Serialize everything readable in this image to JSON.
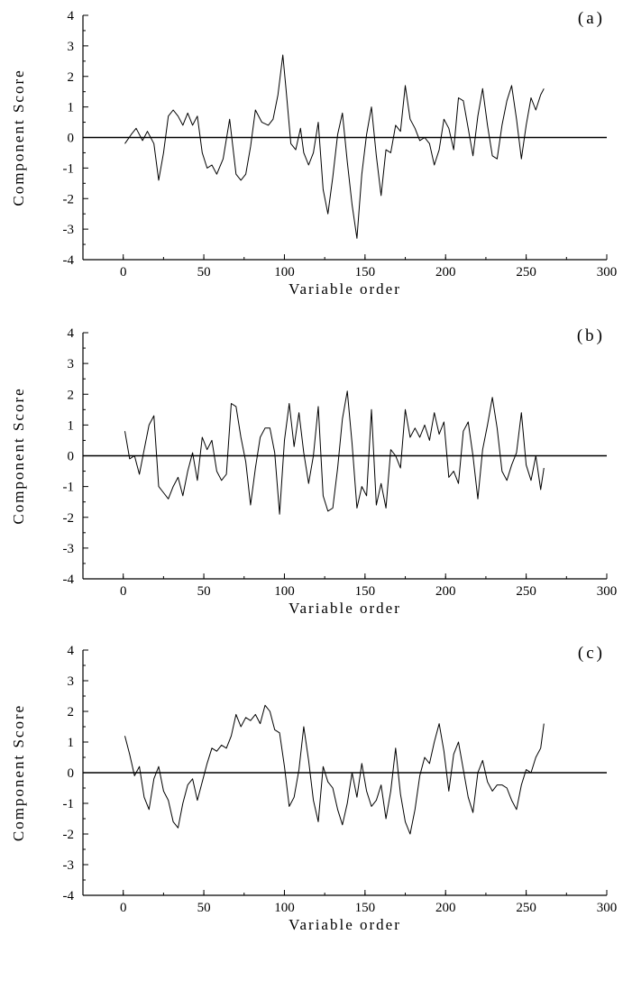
{
  "figure": {
    "panel_labels": [
      "(a)",
      "(b)",
      "(c)"
    ]
  },
  "chart_data": [
    {
      "type": "line",
      "panel_label": "(a)",
      "title": "",
      "xlabel": "Variable order",
      "ylabel": "Component Score",
      "xlim": [
        -25,
        300
      ],
      "ylim": [
        -4,
        4
      ],
      "xticks": [
        0,
        50,
        100,
        150,
        200,
        250,
        300
      ],
      "yticks": [
        -4,
        -3,
        -2,
        -1,
        0,
        1,
        2,
        3,
        4
      ],
      "baseline": 0,
      "grid": false,
      "x": [
        1,
        5,
        8,
        12,
        15,
        19,
        22,
        25,
        28,
        31,
        34,
        37,
        40,
        43,
        46,
        49,
        52,
        55,
        58,
        62,
        66,
        70,
        73,
        76,
        79,
        82,
        86,
        90,
        93,
        96,
        99,
        101,
        104,
        107,
        110,
        112,
        115,
        118,
        121,
        124,
        127,
        130,
        133,
        136,
        139,
        142,
        145,
        148,
        151,
        154,
        157,
        160,
        163,
        166,
        169,
        172,
        175,
        178,
        181,
        184,
        187,
        190,
        193,
        196,
        199,
        202,
        205,
        208,
        211,
        214,
        217,
        220,
        223,
        226,
        229,
        232,
        235,
        238,
        241,
        244,
        247,
        250,
        253,
        256,
        259,
        261
      ],
      "y": [
        -0.2,
        0.1,
        0.3,
        -0.1,
        0.2,
        -0.2,
        -1.4,
        -0.5,
        0.7,
        0.9,
        0.7,
        0.4,
        0.8,
        0.4,
        0.7,
        -0.5,
        -1.0,
        -0.9,
        -1.2,
        -0.7,
        0.6,
        -1.2,
        -1.4,
        -1.2,
        -0.3,
        0.9,
        0.5,
        0.4,
        0.6,
        1.4,
        2.7,
        1.6,
        -0.2,
        -0.4,
        0.3,
        -0.5,
        -0.9,
        -0.5,
        0.5,
        -1.7,
        -2.5,
        -1.3,
        0.1,
        0.8,
        -0.8,
        -2.2,
        -3.3,
        -1.2,
        0.1,
        1.0,
        -0.6,
        -1.9,
        -0.4,
        -0.5,
        0.4,
        0.2,
        1.7,
        0.6,
        0.3,
        -0.1,
        0.0,
        -0.2,
        -0.9,
        -0.4,
        0.6,
        0.3,
        -0.4,
        1.3,
        1.2,
        0.3,
        -0.6,
        0.7,
        1.6,
        0.4,
        -0.6,
        -0.7,
        0.4,
        1.2,
        1.7,
        0.6,
        -0.7,
        0.4,
        1.3,
        0.9,
        1.4,
        1.6
      ]
    },
    {
      "type": "line",
      "panel_label": "(b)",
      "title": "",
      "xlabel": "Variable order",
      "ylabel": "Component Score",
      "xlim": [
        -25,
        300
      ],
      "ylim": [
        -4,
        4
      ],
      "xticks": [
        0,
        50,
        100,
        150,
        200,
        250,
        300
      ],
      "yticks": [
        -4,
        -3,
        -2,
        -1,
        0,
        1,
        2,
        3,
        4
      ],
      "baseline": 0,
      "grid": false,
      "x": [
        1,
        4,
        7,
        10,
        13,
        16,
        19,
        22,
        25,
        28,
        31,
        34,
        37,
        40,
        43,
        46,
        49,
        52,
        55,
        58,
        61,
        64,
        67,
        70,
        73,
        76,
        79,
        82,
        85,
        88,
        91,
        94,
        97,
        100,
        103,
        106,
        109,
        112,
        115,
        118,
        121,
        124,
        127,
        130,
        133,
        136,
        139,
        142,
        145,
        148,
        151,
        154,
        157,
        160,
        163,
        166,
        169,
        172,
        175,
        178,
        181,
        184,
        187,
        190,
        193,
        196,
        199,
        202,
        205,
        208,
        211,
        214,
        217,
        220,
        223,
        226,
        229,
        232,
        235,
        238,
        241,
        244,
        247,
        250,
        253,
        256,
        259,
        261
      ],
      "y": [
        0.8,
        -0.1,
        0.0,
        -0.6,
        0.2,
        1.0,
        1.3,
        -1.0,
        -1.2,
        -1.4,
        -1.0,
        -0.7,
        -1.3,
        -0.5,
        0.1,
        -0.8,
        0.6,
        0.2,
        0.5,
        -0.5,
        -0.8,
        -0.6,
        1.7,
        1.6,
        0.6,
        -0.2,
        -1.6,
        -0.4,
        0.6,
        0.9,
        0.9,
        0.1,
        -1.9,
        0.5,
        1.7,
        0.3,
        1.4,
        0.1,
        -0.9,
        0.0,
        1.6,
        -1.3,
        -1.8,
        -1.7,
        -0.4,
        1.2,
        2.1,
        0.4,
        -1.7,
        -1.0,
        -1.3,
        1.5,
        -1.6,
        -0.9,
        -1.7,
        0.2,
        0.0,
        -0.4,
        1.5,
        0.6,
        0.9,
        0.6,
        1.0,
        0.5,
        1.4,
        0.7,
        1.1,
        -0.7,
        -0.5,
        -0.9,
        0.8,
        1.1,
        0.0,
        -1.4,
        0.2,
        1.0,
        1.9,
        0.9,
        -0.5,
        -0.8,
        -0.3,
        0.1,
        1.4,
        -0.3,
        -0.8,
        0.0,
        -1.1,
        -0.4
      ]
    },
    {
      "type": "line",
      "panel_label": "(c)",
      "title": "",
      "xlabel": "Variable order",
      "ylabel": "Component Score",
      "xlim": [
        -25,
        300
      ],
      "ylim": [
        -4,
        4
      ],
      "xticks": [
        0,
        50,
        100,
        150,
        200,
        250,
        300
      ],
      "yticks": [
        -4,
        -3,
        -2,
        -1,
        0,
        1,
        2,
        3,
        4
      ],
      "baseline": 0,
      "grid": false,
      "x": [
        1,
        4,
        7,
        10,
        13,
        16,
        19,
        22,
        25,
        28,
        31,
        34,
        37,
        40,
        43,
        46,
        49,
        52,
        55,
        58,
        61,
        64,
        67,
        70,
        73,
        76,
        79,
        82,
        85,
        88,
        91,
        94,
        97,
        100,
        103,
        106,
        109,
        112,
        115,
        118,
        121,
        124,
        127,
        130,
        133,
        136,
        139,
        142,
        145,
        148,
        151,
        154,
        157,
        160,
        163,
        166,
        169,
        172,
        175,
        178,
        181,
        184,
        187,
        190,
        193,
        196,
        199,
        202,
        205,
        208,
        211,
        214,
        217,
        220,
        223,
        226,
        229,
        232,
        235,
        238,
        241,
        244,
        247,
        250,
        253,
        256,
        259,
        261
      ],
      "y": [
        1.2,
        0.6,
        -0.1,
        0.2,
        -0.8,
        -1.2,
        -0.2,
        0.2,
        -0.6,
        -0.9,
        -1.6,
        -1.8,
        -1.0,
        -0.4,
        -0.2,
        -0.9,
        -0.3,
        0.3,
        0.8,
        0.7,
        0.9,
        0.8,
        1.2,
        1.9,
        1.5,
        1.8,
        1.7,
        1.9,
        1.6,
        2.2,
        2.0,
        1.4,
        1.3,
        0.2,
        -1.1,
        -0.8,
        0.1,
        1.5,
        0.4,
        -0.9,
        -1.6,
        0.2,
        -0.3,
        -0.5,
        -1.2,
        -1.7,
        -1.0,
        0.0,
        -0.8,
        0.3,
        -0.6,
        -1.1,
        -0.9,
        -0.4,
        -1.5,
        -0.6,
        0.8,
        -0.7,
        -1.6,
        -2.0,
        -1.2,
        -0.1,
        0.5,
        0.3,
        1.0,
        1.6,
        0.7,
        -0.6,
        0.6,
        1.0,
        0.1,
        -0.8,
        -1.3,
        0.0,
        0.4,
        -0.3,
        -0.6,
        -0.4,
        -0.4,
        -0.5,
        -0.9,
        -1.2,
        -0.4,
        0.1,
        0.0,
        0.5,
        0.8,
        1.6
      ]
    }
  ]
}
